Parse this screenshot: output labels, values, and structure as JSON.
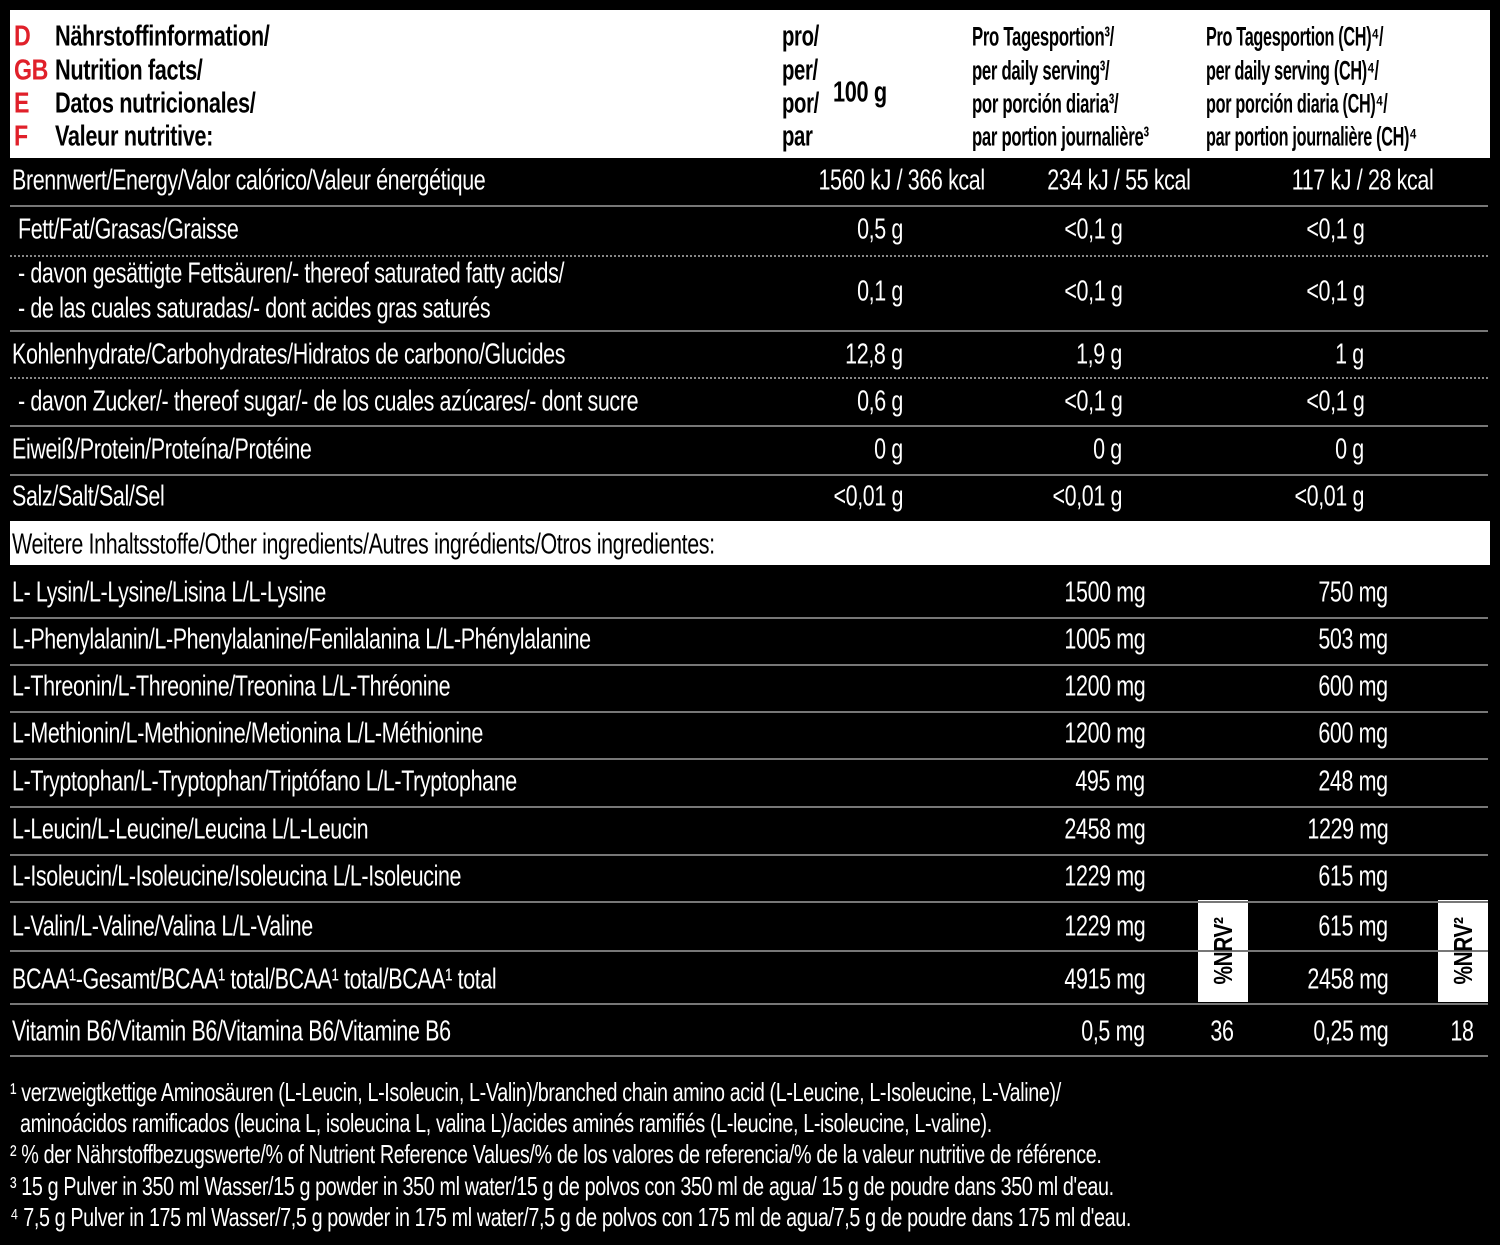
{
  "header": {
    "amount": "100 g",
    "rows": [
      {
        "code": "D",
        "label": "Nährstoffinformation/",
        "per": "pro/",
        "daily": "Pro Tagesportion³/",
        "daily_ch": "Pro Tagesportion (CH)⁴/"
      },
      {
        "code": "GB",
        "label": "Nutrition facts/",
        "per": "per/",
        "daily": "per daily serving³/",
        "daily_ch": "per daily serving (CH)⁴/"
      },
      {
        "code": "E",
        "label": "Datos nutricionales/",
        "per": "por/",
        "daily": "por porción diaria³/",
        "daily_ch": "por porción diaria (CH)⁴/"
      },
      {
        "code": "F",
        "label": "Valeur nutritive:",
        "per": "par",
        "daily": "par portion journalière³",
        "daily_ch": "par portion journalière (CH)⁴"
      }
    ]
  },
  "nutrition": [
    {
      "label": [
        "Brennwert/Energy/Valor calórico/Valeur énergétique"
      ],
      "per_100g": "1560 kJ / 366 kcal",
      "daily": "234 kJ / 55 kcal",
      "daily_ch": "117 kJ / 28 kcal"
    },
    {
      "label": [
        "Fett/Fat/Grasas/Graisse"
      ],
      "per_100g": "0,5 g",
      "daily": "<0,1 g",
      "daily_ch": "<0,1 g"
    },
    {
      "label": [
        "- davon gesättigte Fettsäuren/- thereof saturated fatty acids/",
        "- de las cuales saturadas/- dont acides gras saturés"
      ],
      "per_100g": "0,1 g",
      "daily": "<0,1 g",
      "daily_ch": "<0,1 g"
    },
    {
      "label": [
        "Kohlenhydrate/Carbohydrates/Hidratos de carbono/Glucides"
      ],
      "per_100g": "12,8 g",
      "daily": "1,9 g",
      "daily_ch": "1 g"
    },
    {
      "label": [
        "- davon Zucker/- thereof sugar/- de los cuales azúcares/- dont sucre"
      ],
      "per_100g": "0,6 g",
      "daily": "<0,1 g",
      "daily_ch": "<0,1 g"
    },
    {
      "label": [
        "Eiweiß/Protein/Proteína/Protéine"
      ],
      "per_100g": "0 g",
      "daily": "0 g",
      "daily_ch": "0 g"
    },
    {
      "label": [
        "Salz/Salt/Sal/Sel"
      ],
      "per_100g": "<0,01 g",
      "daily": "<0,01 g",
      "daily_ch": "<0,01 g"
    }
  ],
  "other_ingredients": {
    "title": "Weitere Inhaltsstoffe/Other ingredients/Autres ingrédients/Otros ingredientes:",
    "nrv_header": "%NRV²",
    "rows": [
      {
        "label": "L- Lysin/L-Lysine/Lisina L/L-Lysine",
        "daily": "1500 mg",
        "daily_ch": "750 mg"
      },
      {
        "label": "L-Phenylalanin/L-Phenylalanine/Fenilalanina L/L-Phénylalanine",
        "daily": "1005 mg",
        "daily_ch": "503 mg"
      },
      {
        "label": "L-Threonin/L-Threonine/Treonina L/L-Thréonine",
        "daily": "1200 mg",
        "daily_ch": "600 mg"
      },
      {
        "label": "L-Methionin/L-Methionine/Metionina L/L-Méthionine",
        "daily": "1200 mg",
        "daily_ch": "600 mg"
      },
      {
        "label": "L-Tryptophan/L-Tryptophan/Triptófano L/L-Tryptophane",
        "daily": "495 mg",
        "daily_ch": "248 mg"
      },
      {
        "label": "L-Leucin/L-Leucine/Leucina L/L-Leucin",
        "daily": "2458 mg",
        "daily_ch": "1229 mg"
      },
      {
        "label": "L-Isoleucin/L-Isoleucine/Isoleucina L/L-Isoleucine",
        "daily": "1229 mg",
        "daily_ch": "615 mg"
      },
      {
        "label": "L-Valin/L-Valine/Valina L/L-Valine",
        "daily": "1229 mg",
        "daily_ch": "615 mg"
      },
      {
        "label": "BCAA¹-Gesamt/BCAA¹ total/BCAA¹ total/BCAA¹ total",
        "daily": "4915 mg",
        "daily_ch": "2458 mg"
      },
      {
        "label": "Vitamin B6/Vitamin B6/Vitamina B6/Vitamine B6",
        "daily": "0,5 mg",
        "nrv_daily": "36",
        "daily_ch": "0,25 mg",
        "nrv_ch": "18"
      }
    ]
  },
  "footnotes": [
    [
      "¹ verzweigtkettige Aminosäuren (L-Leucin, L-Isoleucin, L-Valin)/branched chain amino acid (L-Leucine, L-Isoleucine, L-Valine)/",
      "aminoácidos ramificados (leucina L, isoleucina L, valina L)/acides aminés ramifiés (L-leucine, L-isoleucine, L-valine)."
    ],
    [
      "² % der Nährstoffbezugswerte/% of Nutrient Reference Values/% de los valores de referencia/% de la valeur nutritive de référence."
    ],
    [
      "³ 15 g Pulver in 350 ml Wasser/15 g powder in 350 ml water/15 g de polvos con 350 ml de agua/ 15 g de poudre dans 350 ml d'eau."
    ],
    [
      "⁴ 7,5 g Pulver in 175 ml Wasser/7,5 g powder in 175 ml water/7,5 g de polvos con 175 ml de agua/7,5 g de poudre dans 175 ml d'eau."
    ]
  ]
}
